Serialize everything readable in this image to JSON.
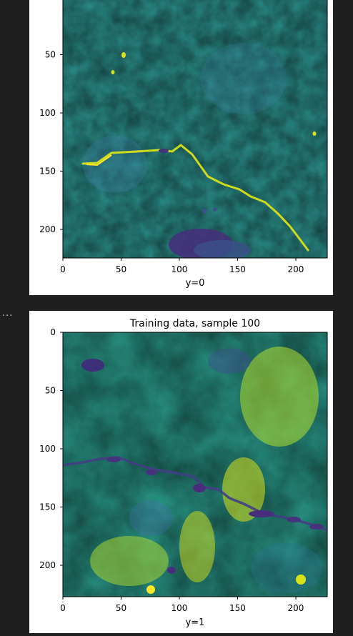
{
  "notebook": {
    "ellipsis": "..."
  },
  "outputs": [
    {
      "chart_data": {
        "type": "heatmap",
        "title": "",
        "xlabel": "y=0",
        "ylabel": "",
        "x_ticks": [
          0,
          50,
          100,
          150,
          200
        ],
        "y_ticks": [
          50,
          100,
          150,
          200
        ],
        "xlim": [
          0,
          227
        ],
        "ylim_visible": [
          0,
          227
        ],
        "colormap": "viridis"
      }
    },
    {
      "chart_data": {
        "type": "heatmap",
        "title": "Training data, sample 100",
        "xlabel": "y=1",
        "ylabel": "",
        "x_ticks": [
          0,
          50,
          100,
          150,
          200
        ],
        "y_ticks": [
          0,
          50,
          100,
          150,
          200
        ],
        "xlim": [
          0,
          227
        ],
        "ylim": [
          0,
          227
        ],
        "colormap": "viridis"
      }
    }
  ]
}
